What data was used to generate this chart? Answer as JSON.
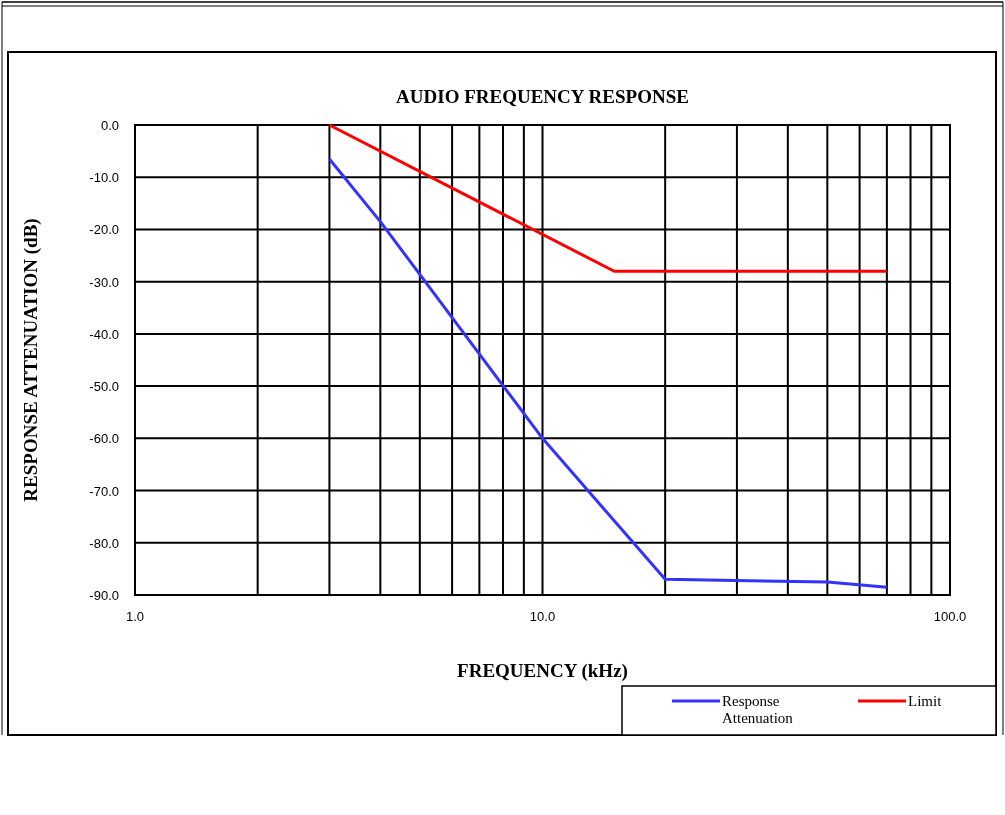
{
  "chart_data": {
    "type": "line",
    "title": "AUDIO FREQUENCY RESPONSE",
    "xlabel": "FREQUENCY (kHz)",
    "ylabel": "RESPONSE ATTENUATION  (dB)",
    "log": "x",
    "grid": true,
    "legend": "bottom right",
    "marker": "none",
    "line_style": "solid",
    "xlim": [
      1,
      100
    ],
    "ylim": [
      -90,
      0
    ],
    "xticks": [
      {
        "value": 1,
        "label": "1.0"
      },
      {
        "value": 2,
        "label": null
      },
      {
        "value": 3,
        "label": null
      },
      {
        "value": 4,
        "label": null
      },
      {
        "value": 5,
        "label": null
      },
      {
        "value": 6,
        "label": null
      },
      {
        "value": 7,
        "label": null
      },
      {
        "value": 8,
        "label": null
      },
      {
        "value": 9,
        "label": null
      },
      {
        "value": 10,
        "label": "10.0"
      },
      {
        "value": 20,
        "label": null
      },
      {
        "value": 30,
        "label": null
      },
      {
        "value": 40,
        "label": null
      },
      {
        "value": 50,
        "label": null
      },
      {
        "value": 60,
        "label": null
      },
      {
        "value": 70,
        "label": null
      },
      {
        "value": 80,
        "label": null
      },
      {
        "value": 90,
        "label": null
      },
      {
        "value": 100,
        "label": "100.0"
      }
    ],
    "yticks": [
      {
        "value": 0,
        "label": "0.0"
      },
      {
        "value": -10,
        "label": "-10.0"
      },
      {
        "value": -20,
        "label": "-20.0"
      },
      {
        "value": -30,
        "label": "-30.0"
      },
      {
        "value": -40,
        "label": "-40.0"
      },
      {
        "value": -50,
        "label": "-50.0"
      },
      {
        "value": -60,
        "label": "-60.0"
      },
      {
        "value": -70,
        "label": "-70.0"
      },
      {
        "value": -80,
        "label": "-80.0"
      },
      {
        "value": -90,
        "label": "-90.0"
      }
    ],
    "series": [
      {
        "name": "Response Attenuation",
        "color": "#3333ff",
        "x": [
          3,
          4,
          10,
          20,
          50,
          70
        ],
        "values": [
          -6.5,
          -18.5,
          -60,
          -87,
          -87.5,
          -88.5
        ]
      },
      {
        "name": "Limit",
        "color": "#ff0000",
        "x": [
          3,
          15,
          70
        ],
        "values": [
          0,
          -28,
          -28
        ]
      }
    ]
  }
}
